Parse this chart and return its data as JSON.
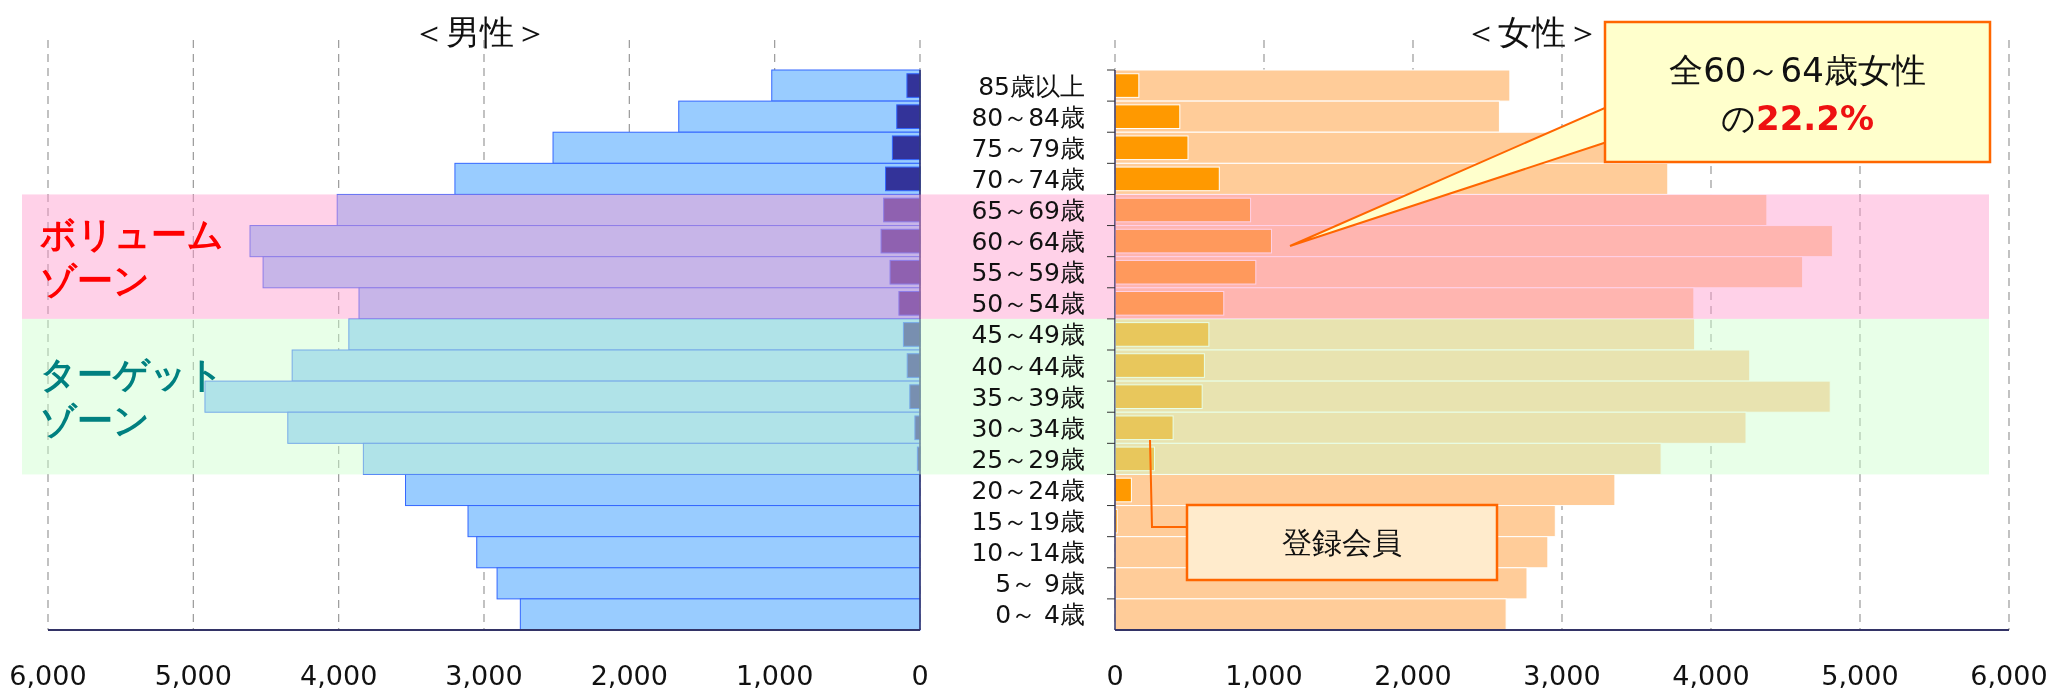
{
  "chart_data": [
    {
      "type": "bar",
      "orientation": "horizontal",
      "title": "＜男性＞",
      "categories": [
        "85歳以上",
        "80～84歳",
        "75～79歳",
        "70～74歳",
        "65～69歳",
        "60～64歳",
        "55～59歳",
        "50～54歳",
        "45～49歳",
        "40～44歳",
        "35～39歳",
        "30～34歳",
        "25～29歳",
        "20～24歳",
        "15～19歳",
        "10～14歳",
        "5～ 9歳",
        "0～ 4歳"
      ],
      "series": [
        {
          "color": "#99ccff",
          "values": [
            1020,
            1660,
            2525,
            3200,
            4010,
            4610,
            4520,
            3860,
            3930,
            4320,
            4920,
            4350,
            3830,
            3540,
            3110,
            3050,
            2910,
            2750
          ]
        },
        {
          "color": "#333399",
          "values": [
            90,
            160,
            190,
            237,
            250,
            268,
            206,
            145,
            114,
            88,
            70,
            35,
            18,
            0,
            0,
            0,
            0,
            0
          ]
        }
      ],
      "xlim": [
        6000,
        0
      ],
      "xticks": [
        {
          "value": 6000,
          "label": "6,000"
        },
        {
          "value": 5000,
          "label": "5,000"
        },
        {
          "value": 4000,
          "label": "4,000"
        },
        {
          "value": 3000,
          "label": "3,000"
        },
        {
          "value": 2000,
          "label": "2,000"
        },
        {
          "value": 1000,
          "label": "1,000"
        },
        0
      ],
      "grid": "x",
      "tick_labels": "x",
      "bands": [
        {
          "axis": "y",
          "from": "65～69歳",
          "to": "50～54歳",
          "label": "ボリュームゾーン",
          "color": "#ff99cc"
        },
        {
          "axis": "y",
          "from": "45～49歳",
          "to": "25～29歳",
          "label": "ターゲットゾーン",
          "color": "#ccffcc"
        }
      ]
    },
    {
      "type": "bar",
      "orientation": "horizontal",
      "title": "＜女性＞",
      "categories": [
        "85歳以上",
        "80～84歳",
        "75～79歳",
        "70～74歳",
        "65～69歳",
        "60～64歳",
        "55～59歳",
        "50～54歳",
        "45～49歳",
        "40～44歳",
        "35～39歳",
        "30～34歳",
        "25～29歳",
        "20～24歳",
        "15～19歳",
        "10～14歳",
        "5～ 9歳",
        "0～ 4歳"
      ],
      "series": [
        {
          "color": "#ffcc99",
          "values": [
            2650,
            2580,
            3285,
            3710,
            4375,
            4815,
            4615,
            3885,
            3890,
            4260,
            4800,
            4235,
            3665,
            3355,
            2955,
            2905,
            2765,
            2625
          ]
        },
        {
          "color": "#ff9900",
          "values": [
            160,
            435,
            490,
            700,
            910,
            1050,
            945,
            730,
            630,
            600,
            585,
            390,
            265,
            110,
            15,
            0,
            0,
            0
          ]
        }
      ],
      "xlim": [
        0,
        6000
      ],
      "xticks": [
        0,
        {
          "value": 1000,
          "label": "1,000"
        },
        {
          "value": 2000,
          "label": "2,000"
        },
        {
          "value": 3000,
          "label": "3,000"
        },
        {
          "value": 4000,
          "label": "4,000"
        },
        {
          "value": 5000,
          "label": "5,000"
        },
        {
          "value": 6000,
          "label": "6,000"
        }
      ],
      "grid": "x",
      "bands": [
        {
          "axis": "y",
          "from": "65～69歳",
          "to": "50～54歳",
          "color": "#ff99cc"
        },
        {
          "axis": "y",
          "from": "45～49歳",
          "to": "25～29歳",
          "color": "#ccffcc"
        }
      ],
      "annotations": [
        "全60～64歳女性の22.2%",
        "登録会員"
      ]
    }
  ]
}
